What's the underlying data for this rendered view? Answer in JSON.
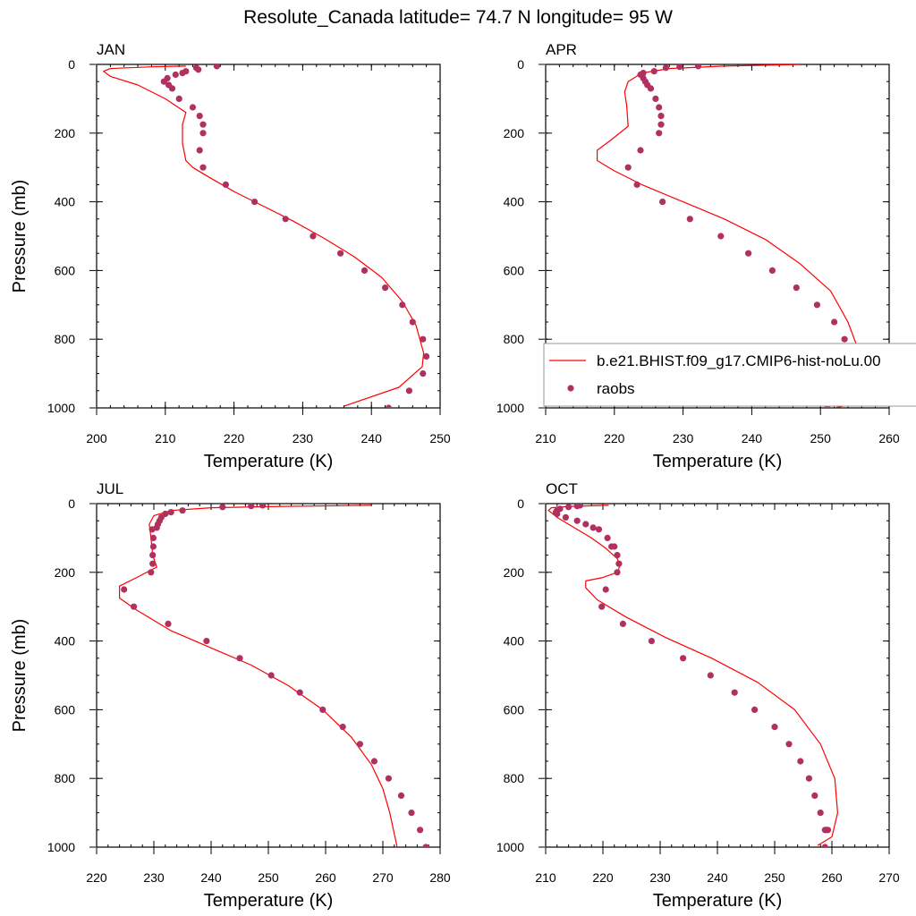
{
  "figure": {
    "title": "Resolute_Canada  latitude= 74.7 N longitude= 95 W",
    "legend": {
      "model_label": "b.e21.BHIST.f09_g17.CMIP6-hist-noLu.00",
      "obs_label": "raobs",
      "placement": "overlaps lower-right of APR panel"
    },
    "colors": {
      "model_line": "#ff0000",
      "obs_marker": "#b03060"
    }
  },
  "chart_data": [
    {
      "type": "line",
      "title": "JAN",
      "xlabel": "Temperature (K)",
      "ylabel": "Pressure (mb)",
      "xlim": [
        200,
        250
      ],
      "ylim": [
        0,
        1000
      ],
      "y_inverted": true,
      "xticks": [
        "200",
        "210",
        "220",
        "230",
        "240",
        "250"
      ],
      "yticks": [
        "0",
        "200",
        "400",
        "600",
        "800",
        "1000"
      ],
      "show_ylabel": true,
      "show_legend": false,
      "series": [
        {
          "kind": "line",
          "x": [
            213,
            208,
            202,
            201,
            202,
            206,
            210,
            213,
            212.5,
            212.5,
            213,
            214,
            216.5,
            220,
            224,
            228.5,
            233,
            237.5,
            241.5,
            244.5,
            246.5,
            247.6,
            247.4,
            244,
            236
          ],
          "y": [
            5,
            7,
            12,
            20,
            35,
            60,
            100,
            140,
            175,
            230,
            280,
            300,
            330,
            370,
            410,
            455,
            505,
            560,
            620,
            690,
            760,
            840,
            880,
            940,
            995
          ]
        },
        {
          "kind": "scatter",
          "x": [
            217.5,
            214.5,
            214.8,
            213,
            212.5,
            211.5,
            210.3,
            209.8,
            210.5,
            211,
            212,
            214,
            215,
            215.5,
            215.5,
            215,
            215.5,
            218.8,
            223,
            227.5,
            231.5,
            235.5,
            239,
            242,
            244.5,
            246,
            247.5,
            248,
            247.5,
            245.5,
            242.5
          ],
          "y": [
            5,
            10,
            15,
            20,
            25,
            30,
            40,
            50,
            60,
            70,
            100,
            125,
            150,
            175,
            200,
            250,
            300,
            350,
            400,
            450,
            500,
            550,
            600,
            650,
            700,
            750,
            800,
            850,
            900,
            950,
            1000
          ]
        }
      ]
    },
    {
      "type": "line",
      "title": "APR",
      "xlabel": "Temperature (K)",
      "ylabel": "",
      "xlim": [
        210,
        260
      ],
      "ylim": [
        0,
        1000
      ],
      "y_inverted": true,
      "xticks": [
        "210",
        "220",
        "230",
        "240",
        "250",
        "260"
      ],
      "yticks": [
        "0",
        "200",
        "400",
        "600",
        "800",
        "1000"
      ],
      "show_ylabel": false,
      "show_legend": true,
      "series": [
        {
          "kind": "line",
          "x": [
            247,
            236,
            228,
            224,
            222,
            221.5,
            221.8,
            222,
            219.5,
            217.5,
            217.5,
            220,
            224,
            230,
            236,
            242,
            247,
            251.5,
            254,
            255.5,
            256,
            255.5,
            254.5,
            252
          ],
          "y": [
            0,
            5,
            12,
            25,
            50,
            80,
            120,
            180,
            220,
            250,
            280,
            310,
            350,
            400,
            450,
            510,
            580,
            660,
            750,
            830,
            880,
            950,
            990,
            1000
          ]
        },
        {
          "kind": "scatter",
          "x": [
            232.2,
            229.5,
            227.5,
            225.8,
            224.2,
            223.8,
            224.2,
            224.5,
            224.8,
            225.3,
            226,
            226.5,
            226.8,
            226.8,
            226.5,
            223.8,
            222,
            223.3,
            227,
            231,
            235.5,
            239.5,
            243,
            246.5,
            249.5,
            252,
            253.5,
            254,
            254.2,
            253.5,
            251
          ],
          "y": [
            5,
            7,
            10,
            20,
            25,
            30,
            40,
            50,
            60,
            70,
            100,
            125,
            150,
            175,
            200,
            250,
            300,
            350,
            400,
            450,
            500,
            550,
            600,
            650,
            700,
            750,
            800,
            850,
            900,
            950,
            1000
          ]
        }
      ]
    },
    {
      "type": "line",
      "title": "JUL",
      "xlabel": "Temperature (K)",
      "ylabel": "Pressure (mb)",
      "xlim": [
        220,
        280
      ],
      "ylim": [
        0,
        1000
      ],
      "y_inverted": true,
      "xticks": [
        "220",
        "230",
        "240",
        "250",
        "260",
        "270",
        "280"
      ],
      "yticks": [
        "0",
        "200",
        "400",
        "600",
        "800",
        "1000"
      ],
      "show_ylabel": true,
      "show_legend": false,
      "series": [
        {
          "kind": "line",
          "x": [
            268,
            252,
            240,
            233,
            230,
            229.2,
            229.5,
            229.8,
            230.5,
            227,
            224,
            224,
            227,
            233,
            240,
            247,
            253.5,
            259.5,
            264.5,
            268,
            270,
            271.2,
            272.5
          ],
          "y": [
            5,
            8,
            12,
            20,
            35,
            60,
            100,
            150,
            185,
            215,
            240,
            275,
            310,
            370,
            420,
            470,
            530,
            600,
            680,
            760,
            830,
            900,
            1000
          ]
        },
        {
          "kind": "scatter",
          "x": [
            249,
            247,
            242,
            235,
            233,
            232,
            231.3,
            231,
            230.7,
            230.5,
            229.7,
            229.9,
            229.9,
            229.8,
            229.8,
            229.5,
            224.8,
            226.5,
            232.5,
            239.2,
            245,
            250.5,
            255.5,
            259.5,
            263,
            266,
            268.5,
            271,
            273.2,
            275,
            276.5,
            277.5
          ],
          "y": [
            5,
            7,
            10,
            20,
            25,
            30,
            40,
            50,
            60,
            70,
            75,
            100,
            125,
            150,
            175,
            200,
            250,
            300,
            350,
            400,
            450,
            500,
            550,
            600,
            650,
            700,
            750,
            800,
            850,
            900,
            950,
            1000
          ]
        }
      ]
    },
    {
      "type": "line",
      "title": "OCT",
      "xlabel": "Temperature (K)",
      "ylabel": "",
      "xlim": [
        210,
        270
      ],
      "ylim": [
        0,
        1000
      ],
      "y_inverted": true,
      "xticks": [
        "210",
        "220",
        "230",
        "240",
        "250",
        "260",
        "270"
      ],
      "yticks": [
        "0",
        "200",
        "400",
        "600",
        "800",
        "1000"
      ],
      "show_ylabel": false,
      "show_legend": false,
      "series": [
        {
          "kind": "line",
          "x": [
            221,
            214,
            211,
            210.5,
            212,
            215,
            218,
            220.5,
            222.5,
            223,
            222.5,
            220,
            217,
            217,
            219,
            224,
            231,
            239,
            247,
            253.5,
            258,
            260.5,
            261,
            260,
            257.5
          ],
          "y": [
            5,
            8,
            12,
            20,
            40,
            70,
            100,
            130,
            160,
            180,
            200,
            215,
            225,
            245,
            280,
            330,
            390,
            450,
            520,
            600,
            700,
            800,
            900,
            970,
            995
          ]
        },
        {
          "kind": "scatter",
          "x": [
            216,
            215.5,
            214,
            212.5,
            212,
            211.8,
            212,
            213.5,
            215.5,
            217,
            218.3,
            219.3,
            220.8,
            221.5,
            222,
            222.5,
            222.8,
            222.5,
            220.5,
            219.8,
            223.5,
            228.5,
            234,
            238.8,
            243,
            246.5,
            250,
            252.5,
            254.5,
            256,
            257,
            258,
            258.8,
            259,
            259.3,
            258.8
          ],
          "y": [
            5,
            7,
            10,
            15,
            20,
            25,
            30,
            40,
            50,
            60,
            70,
            75,
            100,
            125,
            125,
            150,
            175,
            200,
            250,
            300,
            350,
            400,
            450,
            500,
            550,
            600,
            650,
            700,
            750,
            800,
            850,
            900,
            950,
            950,
            950,
            1000
          ]
        }
      ]
    }
  ]
}
